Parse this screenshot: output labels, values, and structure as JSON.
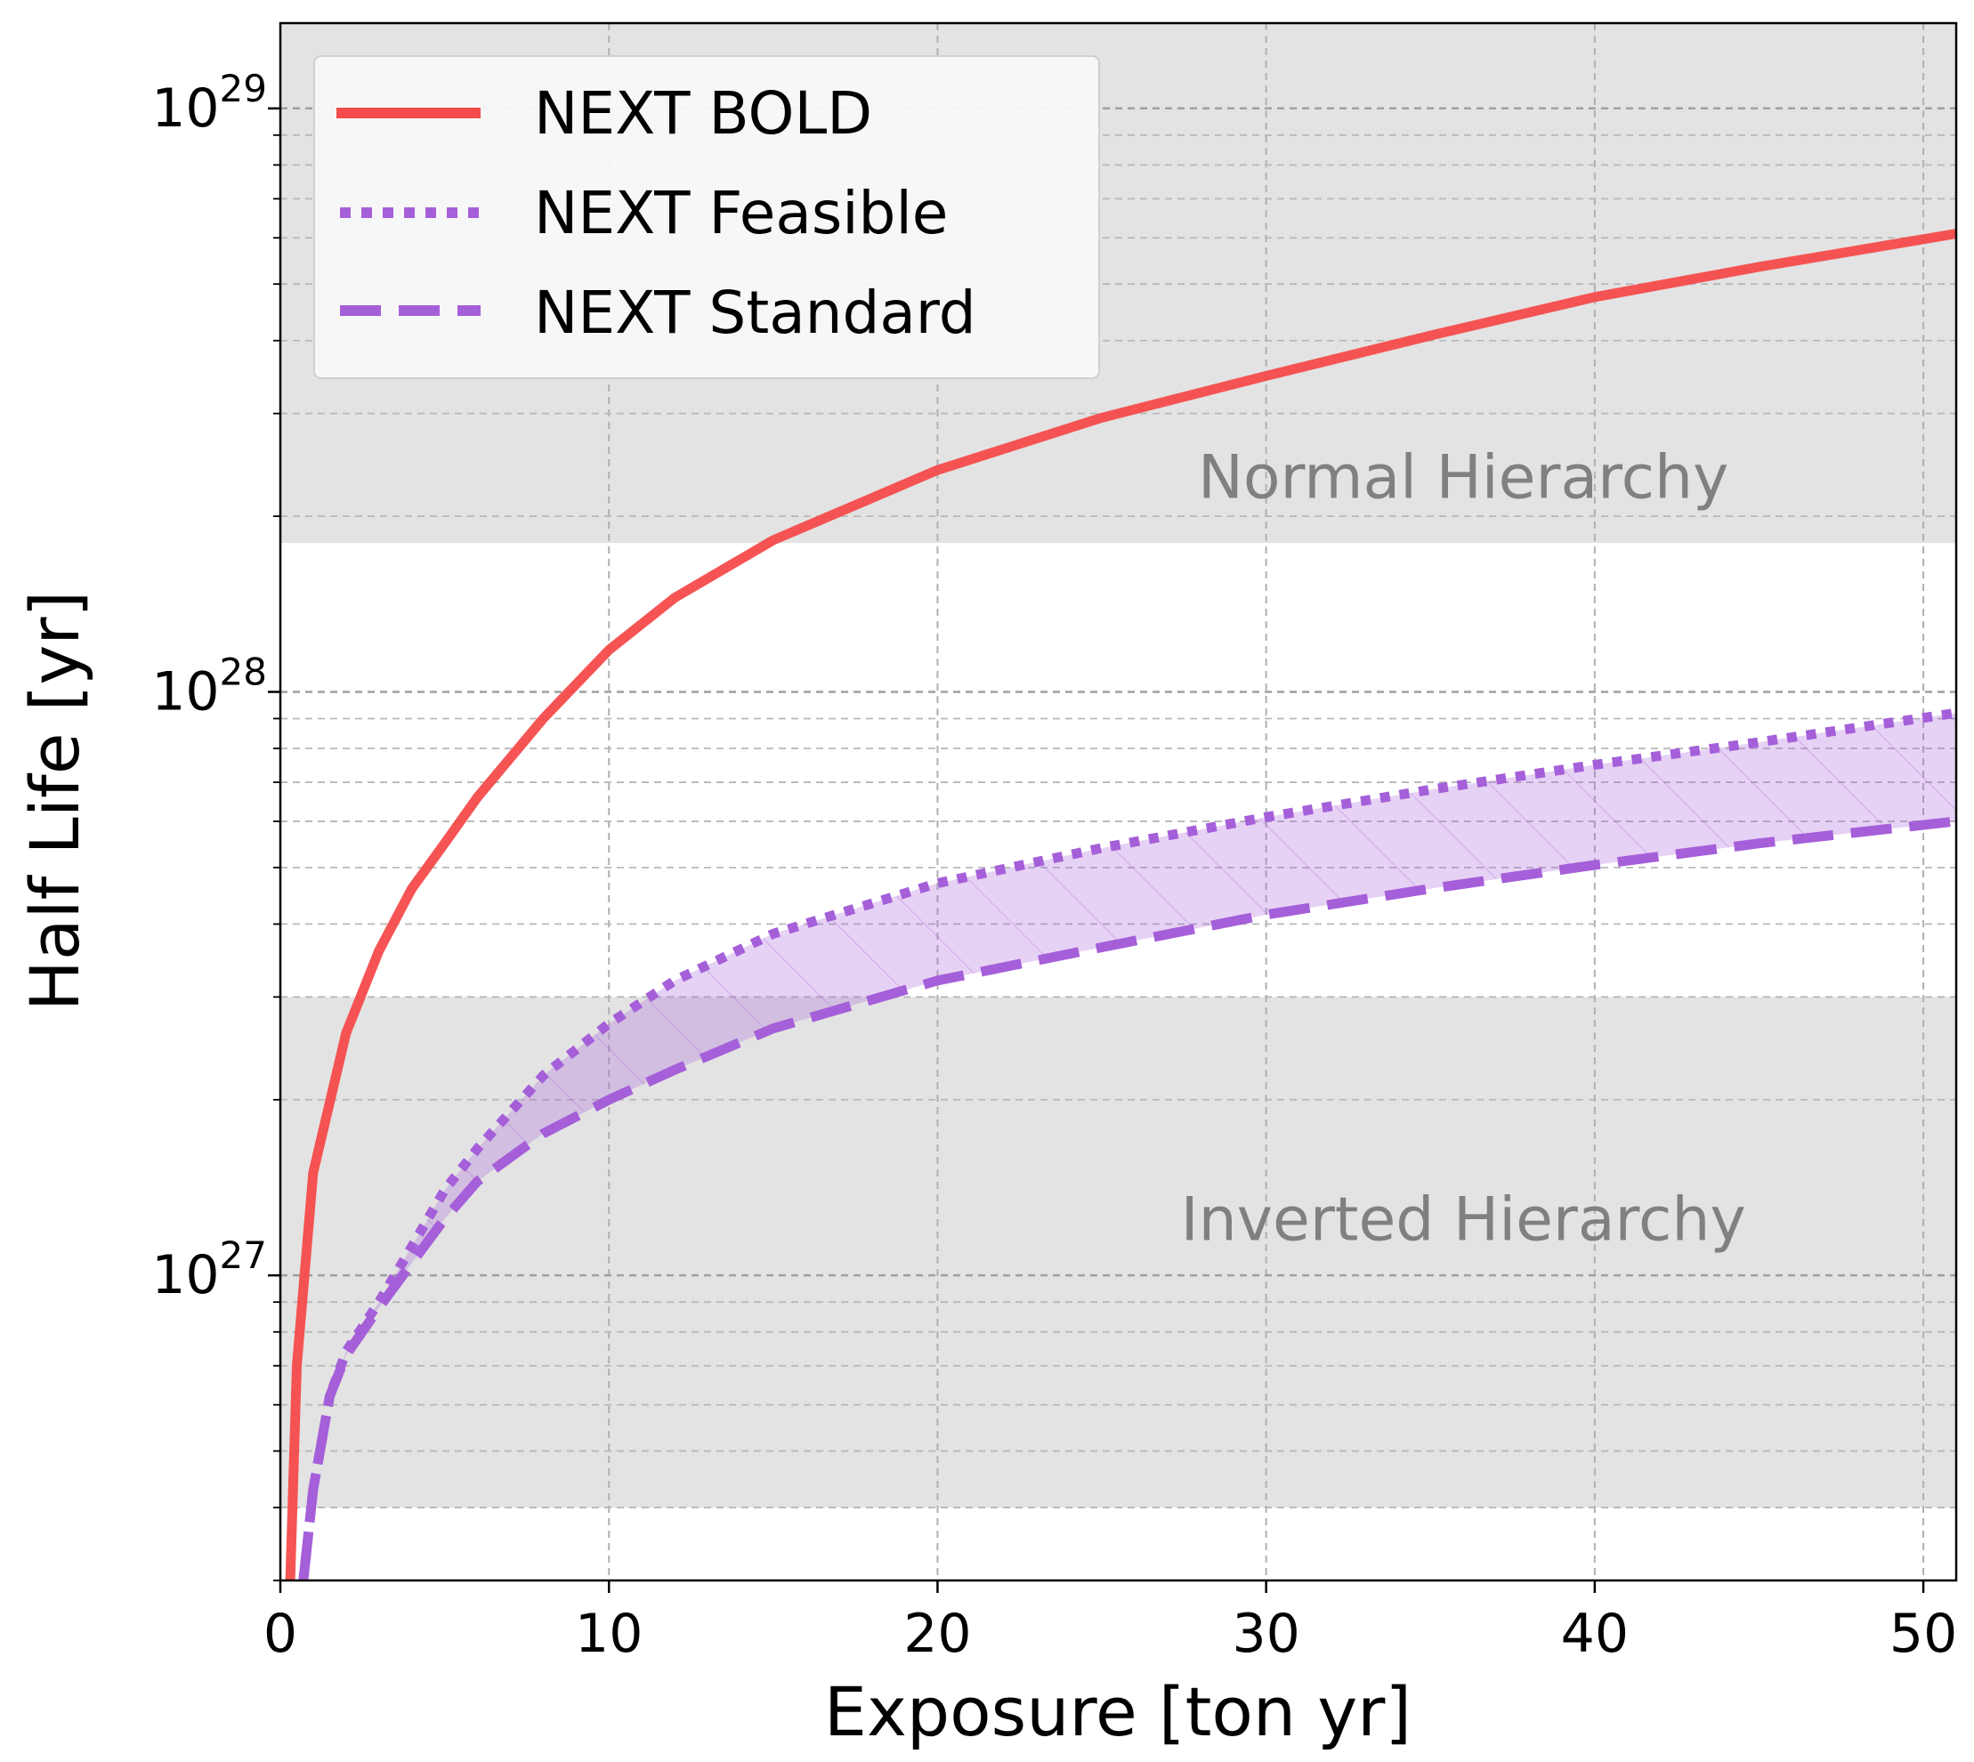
{
  "chart_data": {
    "type": "line",
    "xlabel": "Exposure [ton yr]",
    "ylabel": "Half Life [yr]",
    "xlim": [
      0,
      51
    ],
    "ylim": [
      3e+26,
      1.4e+29
    ],
    "yscale": "log",
    "grid": true,
    "legend_position": "top-left",
    "x_ticks": [
      0,
      10,
      20,
      30,
      40,
      50
    ],
    "y_ticks": [
      {
        "value": 1e+27,
        "base": "10",
        "exp": "27"
      },
      {
        "value": 1e+28,
        "base": "10",
        "exp": "28"
      },
      {
        "value": 1e+29,
        "base": "10",
        "exp": "29"
      }
    ],
    "regions": [
      {
        "label": "Normal Hierarchy",
        "y_range": [
          1.8e+28,
          1.4e+29
        ],
        "label_pos": [
          36,
          2.15e+28
        ]
      },
      {
        "label": "Inverted Hierarchy",
        "y_range": [
          4e+26,
          3e+27
        ],
        "label_pos": [
          36,
          1.15e+27
        ]
      }
    ],
    "series": [
      {
        "name": "NEXT BOLD",
        "style": "solid",
        "color": "#f54b4b",
        "x": [
          0.3,
          0.5,
          1,
          2,
          3,
          4,
          5,
          6,
          8,
          10,
          12,
          15,
          20,
          25,
          30,
          35,
          40,
          45,
          51
        ],
        "y": [
          3e+26,
          7e+26,
          1.5e+27,
          2.6e+27,
          3.6e+27,
          4.6e+27,
          5.5e+27,
          6.6e+27,
          9e+27,
          1.18e+28,
          1.45e+28,
          1.82e+28,
          2.4e+28,
          2.95e+28,
          3.48e+28,
          4.08e+28,
          4.75e+28,
          5.35e+28,
          6.1e+28
        ]
      },
      {
        "name": "NEXT Feasible",
        "style": "dotted",
        "color": "#a55fd9",
        "x": [
          0.7,
          1,
          1.5,
          2,
          3,
          4,
          5,
          6,
          8,
          10,
          12,
          15,
          20,
          25,
          30,
          35,
          40,
          45,
          51
        ],
        "y": [
          3e+26,
          4.3e+26,
          6.2e+26,
          7.4e+26,
          9e+26,
          1.12e+27,
          1.4e+27,
          1.65e+27,
          2.2e+27,
          2.7e+27,
          3.2e+27,
          3.85e+27,
          4.7e+27,
          5.4e+27,
          6.1e+27,
          6.8e+27,
          7.5e+27,
          8.2e+27,
          9.2e+27
        ]
      },
      {
        "name": "NEXT Standard",
        "style": "dashed",
        "color": "#a55fd9",
        "x": [
          0.7,
          1,
          1.5,
          2,
          3,
          4,
          5,
          6,
          8,
          10,
          12,
          15,
          20,
          25,
          30,
          35,
          40,
          45,
          51
        ],
        "y": [
          3e+26,
          4.3e+26,
          6.2e+26,
          7.3e+26,
          8.8e+26,
          1.05e+27,
          1.25e+27,
          1.45e+27,
          1.75e+27,
          2e+27,
          2.25e+27,
          2.65e+27,
          3.2e+27,
          3.65e+27,
          4.15e+27,
          4.6e+27,
          5.05e+27,
          5.5e+27,
          6e+27
        ]
      }
    ]
  }
}
